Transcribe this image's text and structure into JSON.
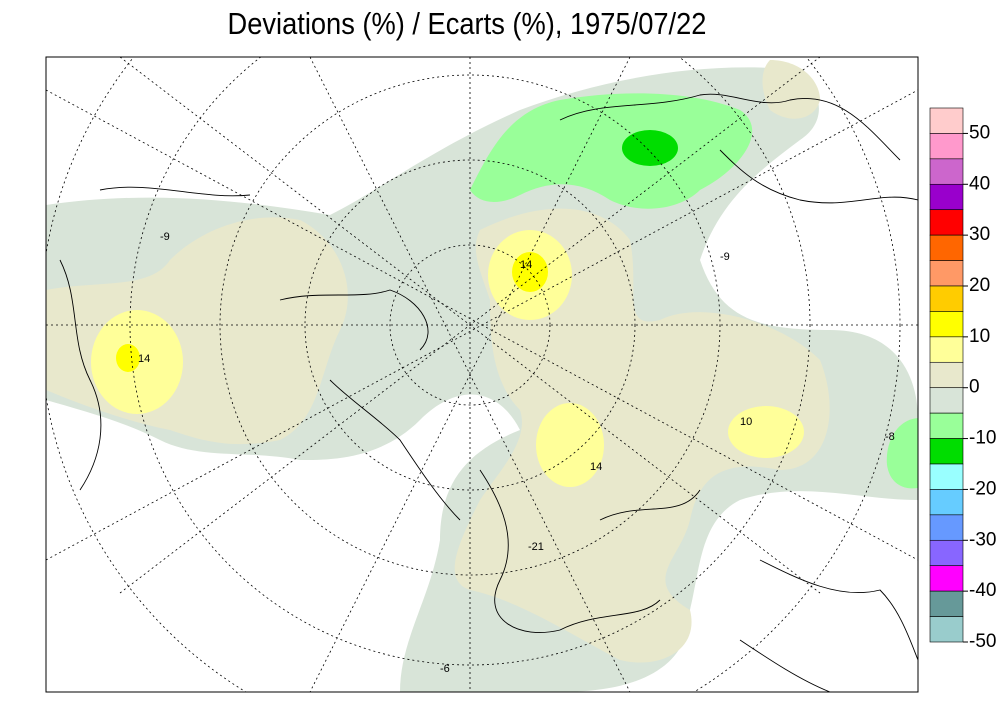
{
  "title": "Deviations (%) / Ecarts (%), 1975/07/22",
  "legend": {
    "bins": [
      55,
      50,
      45,
      40,
      35,
      30,
      25,
      20,
      15,
      10,
      5,
      0,
      -5,
      -10,
      -15,
      -20,
      -25,
      -30,
      -35,
      -40,
      -45,
      -50
    ],
    "colors": [
      "#ffcccc",
      "#ff99cc",
      "#cc66cc",
      "#9900cc",
      "#ff0000",
      "#ff6600",
      "#ff9966",
      "#ffcc00",
      "#ffff00",
      "#ffff99",
      "#e8e8cc",
      "#d8e4d8",
      "#99ff99",
      "#00dd00",
      "#99ffff",
      "#66ccff",
      "#6699ff",
      "#8866ff",
      "#ff00ff",
      "#669999",
      "#99cccc"
    ],
    "ticks": [
      50,
      40,
      30,
      20,
      10,
      0,
      -10,
      -20,
      -30,
      -40,
      -50
    ]
  },
  "map_labels": [
    "14",
    "-9",
    "14",
    "-6",
    "-8",
    "10",
    "-21",
    "14",
    "-9"
  ]
}
